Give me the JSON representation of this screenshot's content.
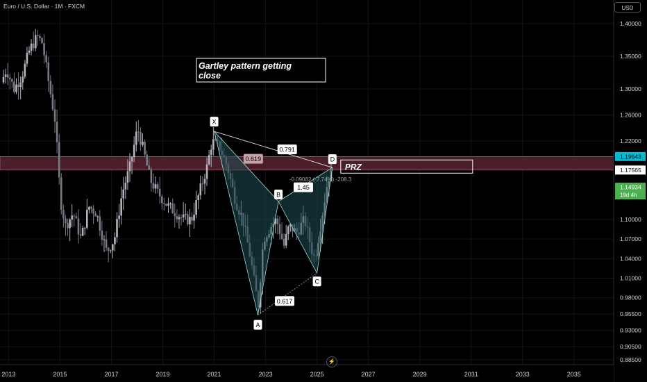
{
  "header": {
    "symbol_title": "Euro / U.S. Dollar · 1M · FXCM",
    "currency_button": "USD"
  },
  "annotation": {
    "line1": "Gartley pattern getting",
    "line2": "close"
  },
  "prz_label": "PRZ",
  "colors": {
    "background": "#000000",
    "bull": "#b2b5be",
    "bear": "#787b86",
    "pattern_fill": "#1e4d52",
    "pattern_line": "#9fd6d6",
    "prz_zone": "#4a1f29",
    "price_blue": "#00bcd4",
    "price_green": "#4caf50",
    "price_white": "#ffffff"
  },
  "chart_data": {
    "type": "candlestick",
    "title": "Euro / U.S. Dollar · 1M · FXCM",
    "x_axis": {
      "ticks": [
        "2013",
        "2015",
        "2017",
        "2019",
        "2021",
        "2023",
        "2025",
        "2027",
        "2029",
        "2031",
        "2033",
        "2035"
      ],
      "range": [
        2012.8,
        2036.2
      ]
    },
    "y_axis": {
      "ticks": [
        "1.40000",
        "1.35000",
        "1.30000",
        "1.26000",
        "1.22000",
        "1.10000",
        "1.07000",
        "1.04000",
        "1.01000",
        "0.98000",
        "0.95500",
        "0.93000",
        "0.90500",
        "0.88500"
      ],
      "range": [
        0.875,
        1.41
      ]
    },
    "series_anchor_prices": [
      [
        2012.8,
        1.31
      ],
      [
        2013.0,
        1.33
      ],
      [
        2013.3,
        1.3
      ],
      [
        2013.6,
        1.32
      ],
      [
        2013.9,
        1.36
      ],
      [
        2014.2,
        1.38
      ],
      [
        2014.4,
        1.37
      ],
      [
        2014.6,
        1.32
      ],
      [
        2014.9,
        1.25
      ],
      [
        2015.1,
        1.13
      ],
      [
        2015.3,
        1.09
      ],
      [
        2015.6,
        1.11
      ],
      [
        2015.9,
        1.07
      ],
      [
        2016.2,
        1.12
      ],
      [
        2016.5,
        1.11
      ],
      [
        2016.9,
        1.05
      ],
      [
        2017.2,
        1.07
      ],
      [
        2017.5,
        1.14
      ],
      [
        2017.8,
        1.18
      ],
      [
        2018.1,
        1.24
      ],
      [
        2018.3,
        1.21
      ],
      [
        2018.6,
        1.16
      ],
      [
        2018.9,
        1.14
      ],
      [
        2019.3,
        1.12
      ],
      [
        2019.6,
        1.11
      ],
      [
        2019.9,
        1.1
      ],
      [
        2020.2,
        1.1
      ],
      [
        2020.5,
        1.14
      ],
      [
        2020.8,
        1.18
      ],
      [
        2021.0,
        1.22
      ],
      [
        2021.3,
        1.21
      ],
      [
        2021.6,
        1.18
      ],
      [
        2021.9,
        1.13
      ],
      [
        2022.2,
        1.1
      ],
      [
        2022.5,
        1.04
      ],
      [
        2022.7,
        0.99
      ],
      [
        2022.8,
        0.97
      ],
      [
        2023.0,
        1.07
      ],
      [
        2023.3,
        1.09
      ],
      [
        2023.5,
        1.1
      ],
      [
        2023.8,
        1.06
      ],
      [
        2024.0,
        1.09
      ],
      [
        2024.3,
        1.08
      ],
      [
        2024.6,
        1.1
      ],
      [
        2024.9,
        1.05
      ],
      [
        2025.0,
        1.04
      ],
      [
        2025.3,
        1.11
      ],
      [
        2025.5,
        1.16
      ],
      [
        2025.6,
        1.17
      ]
    ],
    "last_price": "1.14934",
    "countdown": "19d 4h",
    "price_labels": [
      "1.19643",
      "1.17565",
      "1.14934"
    ],
    "prz_range": [
      1.17565,
      1.19643
    ],
    "harmonic_pattern": {
      "points": [
        {
          "label": "X",
          "date": 2021.0,
          "price": 1.2349
        },
        {
          "label": "A",
          "date": 2022.7,
          "price": 0.9535
        },
        {
          "label": "B",
          "date": 2023.5,
          "price": 1.1276
        },
        {
          "label": "C",
          "date": 2025.0,
          "price": 1.0178
        },
        {
          "label": "D",
          "date": 2025.6,
          "price": 1.1796
        }
      ],
      "ratios": [
        {
          "text": "0.791"
        },
        {
          "text": "0.619"
        },
        {
          "text": "1.45"
        },
        {
          "text": "0.617"
        }
      ],
      "projection_note": "-0.09082 (-7.74%) -208.3"
    }
  }
}
